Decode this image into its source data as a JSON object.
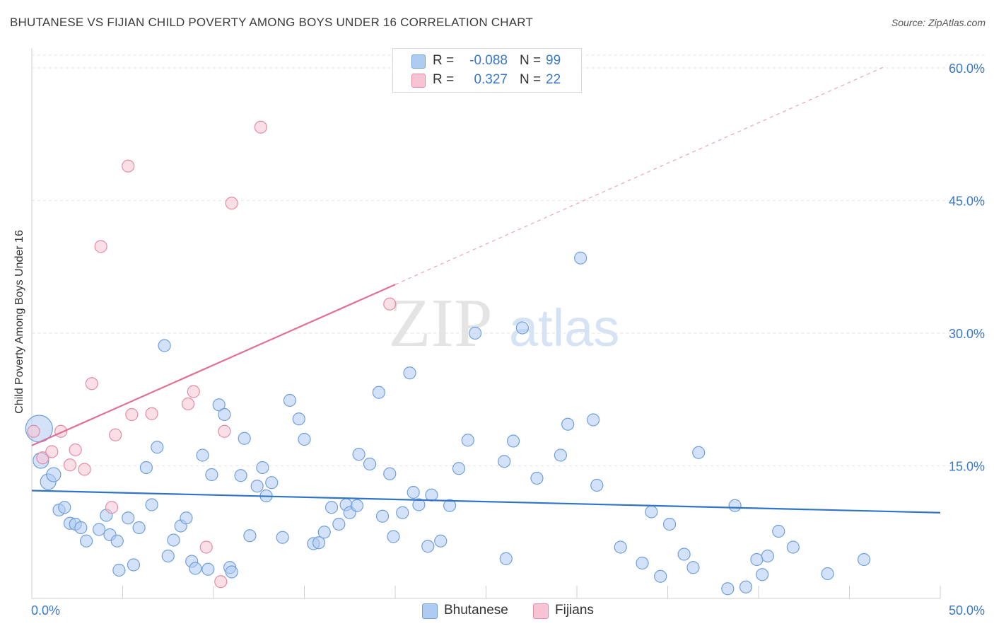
{
  "title": "BHUTANESE VS FIJIAN CHILD POVERTY AMONG BOYS UNDER 16 CORRELATION CHART",
  "source": "Source: ZipAtlas.com",
  "watermark": {
    "zip": "ZIP",
    "atlas": "atlas"
  },
  "legend": {
    "rows": [
      {
        "r_label": "R =",
        "r_value": "-0.088",
        "n_label": "N =",
        "n_value": "99",
        "color": "#aecbf2",
        "border": "#6f9fdc"
      },
      {
        "r_label": "R =",
        "r_value": "0.327",
        "n_label": "N =",
        "n_value": "22",
        "color": "#f8c4d3",
        "border": "#e48aa6"
      }
    ]
  },
  "bottom_legend": {
    "bhutanese": "Bhutanese",
    "fijians": "Fijians"
  },
  "chart_data": {
    "type": "scatter",
    "title": "BHUTANESE VS FIJIAN CHILD POVERTY AMONG BOYS UNDER 16 CORRELATION CHART",
    "xlabel": "",
    "ylabel": "Child Poverty Among Boys Under 16",
    "xlim": [
      0,
      50
    ],
    "ylim": [
      0,
      60
    ],
    "x_tick_labels": [
      "0.0%",
      "50.0%"
    ],
    "y_tick_labels": [
      "15.0%",
      "30.0%",
      "45.0%",
      "60.0%"
    ],
    "y_ticks": [
      15,
      30,
      45,
      60
    ],
    "grid": true,
    "legend_position": "top-center",
    "series": [
      {
        "name": "Bhutanese",
        "color": "#6f9fdc",
        "fill": "#aecbf2",
        "points": [
          [
            0.4,
            19.2,
            "big"
          ],
          [
            0.5,
            15.6,
            "med"
          ],
          [
            0.9,
            13.2,
            "med"
          ],
          [
            1.2,
            14.0,
            "sm"
          ],
          [
            1.5,
            10.0
          ],
          [
            1.8,
            10.3
          ],
          [
            2.1,
            8.5
          ],
          [
            2.4,
            8.4
          ],
          [
            2.7,
            8.0
          ],
          [
            3.0,
            6.5
          ],
          [
            3.7,
            7.8
          ],
          [
            4.1,
            9.4
          ],
          [
            4.3,
            7.2
          ],
          [
            4.7,
            6.5
          ],
          [
            4.8,
            3.2
          ],
          [
            5.3,
            9.1
          ],
          [
            5.6,
            3.8
          ],
          [
            5.9,
            8.0
          ],
          [
            6.3,
            14.8
          ],
          [
            6.6,
            10.6
          ],
          [
            6.9,
            17.1
          ],
          [
            7.3,
            28.6
          ],
          [
            7.5,
            4.8
          ],
          [
            7.8,
            6.6
          ],
          [
            8.2,
            8.2
          ],
          [
            8.5,
            9.1
          ],
          [
            8.8,
            4.2
          ],
          [
            9.0,
            3.4
          ],
          [
            9.4,
            16.2
          ],
          [
            9.7,
            3.3
          ],
          [
            9.9,
            14.0
          ],
          [
            10.3,
            21.9
          ],
          [
            10.6,
            20.8
          ],
          [
            10.9,
            3.5
          ],
          [
            11.0,
            3.0
          ],
          [
            11.5,
            13.9
          ],
          [
            11.7,
            18.1
          ],
          [
            12.0,
            7.1
          ],
          [
            12.4,
            12.7
          ],
          [
            12.7,
            14.8
          ],
          [
            12.9,
            11.6
          ],
          [
            13.2,
            13.1
          ],
          [
            13.8,
            6.9
          ],
          [
            14.2,
            22.4
          ],
          [
            14.7,
            20.3
          ],
          [
            15.0,
            18.0
          ],
          [
            15.5,
            6.2
          ],
          [
            15.8,
            6.3
          ],
          [
            16.1,
            7.5
          ],
          [
            16.5,
            10.3
          ],
          [
            16.9,
            8.4
          ],
          [
            17.3,
            10.6
          ],
          [
            17.5,
            9.7
          ],
          [
            17.9,
            10.5
          ],
          [
            18.0,
            16.3
          ],
          [
            18.6,
            15.2
          ],
          [
            19.1,
            23.3
          ],
          [
            19.3,
            9.3
          ],
          [
            19.7,
            14.1
          ],
          [
            19.9,
            7.0
          ],
          [
            20.4,
            9.7
          ],
          [
            20.8,
            25.5
          ],
          [
            21.0,
            12.0
          ],
          [
            21.3,
            10.6
          ],
          [
            21.8,
            5.9
          ],
          [
            22.0,
            11.7
          ],
          [
            22.5,
            6.5
          ],
          [
            23.0,
            10.5
          ],
          [
            23.5,
            14.7
          ],
          [
            24.0,
            17.9
          ],
          [
            24.4,
            30.0
          ],
          [
            26.0,
            15.5
          ],
          [
            26.1,
            4.5
          ],
          [
            26.5,
            17.8
          ],
          [
            27.0,
            30.6
          ],
          [
            27.8,
            13.6
          ],
          [
            29.1,
            16.2
          ],
          [
            29.5,
            19.7
          ],
          [
            30.2,
            38.5
          ],
          [
            30.9,
            20.2
          ],
          [
            31.1,
            12.8
          ],
          [
            32.4,
            5.8
          ],
          [
            33.6,
            4.0
          ],
          [
            34.1,
            9.8
          ],
          [
            34.6,
            2.5
          ],
          [
            35.1,
            8.4
          ],
          [
            35.9,
            5.0
          ],
          [
            36.4,
            3.5
          ],
          [
            36.7,
            16.5
          ],
          [
            38.3,
            1.1
          ],
          [
            38.7,
            10.5
          ],
          [
            39.3,
            1.3
          ],
          [
            39.9,
            4.4
          ],
          [
            40.2,
            2.7
          ],
          [
            40.5,
            4.8
          ],
          [
            41.1,
            7.6
          ],
          [
            41.9,
            5.8
          ],
          [
            43.8,
            2.8
          ],
          [
            45.8,
            4.4
          ]
        ],
        "trend": {
          "x": [
            0,
            50
          ],
          "y": [
            12.2,
            9.7
          ]
        }
      },
      {
        "name": "Fijians",
        "color": "#e48aa6",
        "fill": "#f8c4d3",
        "points": [
          [
            0.1,
            18.9
          ],
          [
            0.6,
            15.9
          ],
          [
            1.1,
            16.6
          ],
          [
            1.6,
            18.9
          ],
          [
            2.1,
            15.1
          ],
          [
            2.4,
            16.8
          ],
          [
            2.9,
            14.6
          ],
          [
            3.3,
            24.3
          ],
          [
            3.8,
            39.8
          ],
          [
            4.4,
            10.3
          ],
          [
            4.6,
            18.5
          ],
          [
            5.3,
            48.9
          ],
          [
            5.5,
            20.8
          ],
          [
            6.6,
            20.9
          ],
          [
            8.6,
            22.0
          ],
          [
            8.9,
            23.4
          ],
          [
            9.6,
            5.8
          ],
          [
            10.4,
            1.9
          ],
          [
            10.6,
            18.9
          ],
          [
            11.0,
            44.7
          ],
          [
            12.6,
            53.3
          ],
          [
            19.7,
            33.3
          ]
        ],
        "trend_solid": {
          "x": [
            0,
            20
          ],
          "y": [
            17.3,
            35.5
          ]
        },
        "trend_dashed": {
          "x": [
            20,
            47
          ],
          "y": [
            35.5,
            60.2
          ]
        }
      }
    ]
  }
}
